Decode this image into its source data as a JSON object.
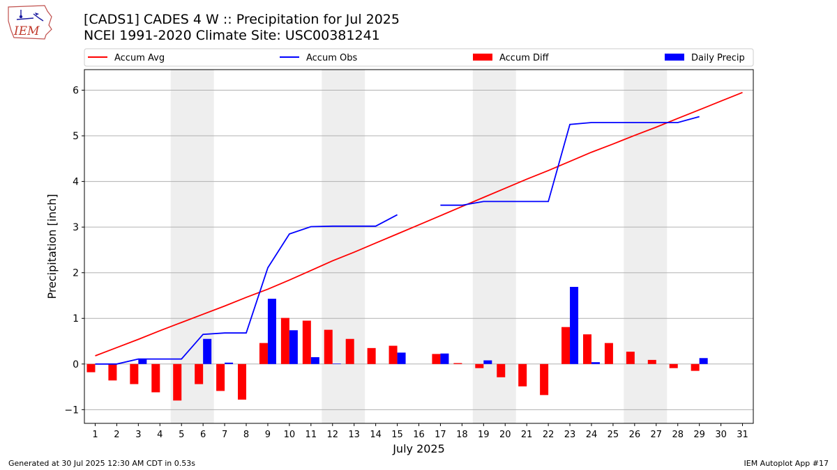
{
  "header": {
    "title_line1": "[CADS1] CADES 4 W :: Precipitation for Jul 2025",
    "title_line2": "NCEI 1991-2020 Climate Site: USC00381241"
  },
  "logo": {
    "text": "IEM",
    "icon": "iem-iowa-map-logo"
  },
  "footer": {
    "generated": "Generated at 30 Jul 2025 12:30 AM CDT in 0.53s",
    "app": "IEM Autoplot App #17"
  },
  "colors": {
    "avg": "#ff0000",
    "obs": "#0000ff",
    "diff": "#ff0000",
    "daily": "#0000ff",
    "weekend": "#eeeeee",
    "grid": "#b0b0b0"
  },
  "chart_data": {
    "type": "bar",
    "xlabel": "July 2025",
    "ylabel": "Precipitation [inch]",
    "xlim": [
      0.5,
      31.5
    ],
    "ylim": [
      -1.3,
      6.45
    ],
    "yticks": [
      -1,
      0,
      1,
      2,
      3,
      4,
      5,
      6
    ],
    "legend_position": "top",
    "grid": "horizontal",
    "weekend_shading": [
      [
        4.5,
        6.5
      ],
      [
        11.5,
        13.5
      ],
      [
        18.5,
        20.5
      ],
      [
        25.5,
        27.5
      ]
    ],
    "days": [
      1,
      2,
      3,
      4,
      5,
      6,
      7,
      8,
      9,
      10,
      11,
      12,
      13,
      14,
      15,
      16,
      17,
      18,
      19,
      20,
      21,
      22,
      23,
      24,
      25,
      26,
      27,
      28,
      29,
      30,
      31
    ],
    "series": [
      {
        "name": "Accum Avg",
        "kind": "line",
        "values": [
          0.18,
          0.36,
          0.54,
          0.73,
          0.91,
          1.09,
          1.27,
          1.46,
          1.64,
          1.84,
          2.05,
          2.26,
          2.45,
          2.65,
          2.85,
          3.05,
          3.25,
          3.45,
          3.65,
          3.85,
          4.05,
          4.24,
          4.44,
          4.64,
          4.82,
          5.01,
          5.19,
          5.38,
          5.57,
          5.76,
          5.95
        ]
      },
      {
        "name": "Accum Obs",
        "kind": "line",
        "values": [
          0.0,
          0.0,
          0.11,
          0.11,
          0.11,
          0.65,
          0.68,
          0.68,
          2.11,
          2.85,
          3.01,
          3.02,
          3.02,
          3.02,
          3.27,
          null,
          3.48,
          3.48,
          3.56,
          3.56,
          3.56,
          3.56,
          5.25,
          5.29,
          5.29,
          5.29,
          5.29,
          5.29,
          5.42,
          null,
          null
        ]
      },
      {
        "name": "Accum Diff",
        "kind": "bar",
        "values": [
          -0.18,
          -0.36,
          -0.44,
          -0.62,
          -0.8,
          -0.44,
          -0.59,
          -0.78,
          0.46,
          1.01,
          0.95,
          0.75,
          0.55,
          0.35,
          0.4,
          null,
          0.22,
          0.02,
          -0.09,
          -0.29,
          -0.49,
          -0.68,
          0.81,
          0.65,
          0.46,
          0.27,
          0.09,
          -0.09,
          -0.15,
          null,
          null
        ]
      },
      {
        "name": "Daily Precip",
        "kind": "bar",
        "values": [
          0.0,
          0.0,
          0.11,
          0.0,
          0.0,
          0.55,
          0.03,
          0.0,
          1.43,
          0.74,
          0.15,
          0.01,
          0.0,
          0.0,
          0.25,
          null,
          0.23,
          0.0,
          0.08,
          0.0,
          0.0,
          0.0,
          1.69,
          0.04,
          0.0,
          0.0,
          0.0,
          0.0,
          0.13,
          null,
          null
        ]
      }
    ]
  }
}
